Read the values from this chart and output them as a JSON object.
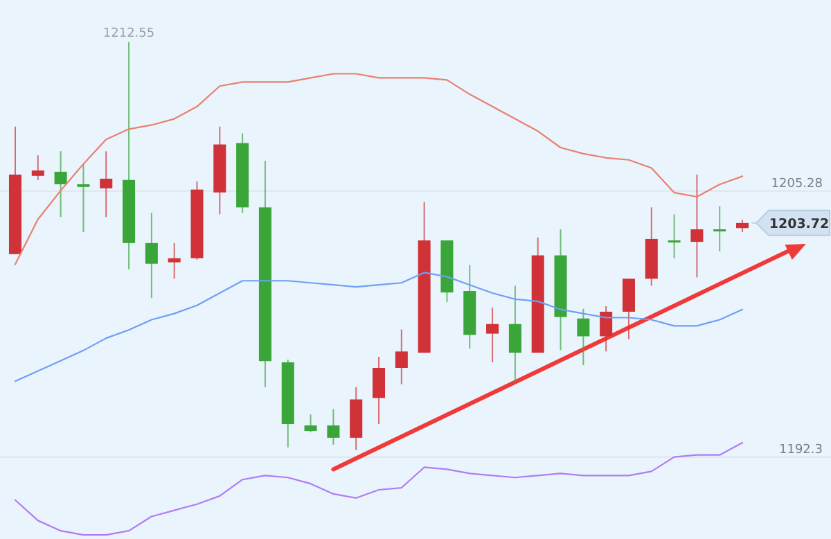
{
  "chart_data": {
    "type": "candlestick",
    "categories": [
      null,
      null,
      null,
      null,
      null,
      null,
      null,
      null,
      null,
      null,
      null,
      null,
      null,
      null,
      null,
      null,
      null,
      null,
      null,
      null,
      null,
      null,
      null,
      null,
      null,
      null,
      null,
      null,
      null,
      null,
      null,
      null,
      null
    ],
    "ohlc": [
      [
        1202.2,
        1208.42,
        1202.2,
        1206.08
      ],
      [
        1206.02,
        1207.02,
        1205.82,
        1206.28
      ],
      [
        1206.22,
        1207.22,
        1204.01,
        1205.61
      ],
      [
        1205.61,
        1206.62,
        1203.27,
        1205.48
      ],
      [
        1205.41,
        1207.22,
        1204.01,
        1205.88
      ],
      [
        1205.82,
        1212.55,
        1201.47,
        1202.74
      ],
      [
        1202.74,
        1204.21,
        1200.06,
        1201.73
      ],
      [
        1201.8,
        1202.74,
        1201.0,
        1202.0
      ],
      [
        1202.0,
        1205.75,
        1201.93,
        1205.35
      ],
      [
        1205.21,
        1208.42,
        1204.14,
        1207.55
      ],
      [
        1207.62,
        1208.09,
        1204.21,
        1204.48
      ],
      [
        1204.48,
        1206.75,
        1195.71,
        1196.98
      ],
      [
        1196.92,
        1197.05,
        1192.77,
        1193.91
      ],
      [
        1193.84,
        1194.38,
        1193.51,
        1193.57
      ],
      [
        1193.84,
        1194.64,
        1192.9,
        1193.24
      ],
      [
        1193.24,
        1195.71,
        1192.64,
        1195.11
      ],
      [
        1195.18,
        1197.19,
        1193.91,
        1196.65
      ],
      [
        1196.65,
        1198.52,
        1195.85,
        1197.45
      ],
      [
        1197.39,
        1204.74,
        1197.39,
        1202.87
      ],
      [
        1202.87,
        1202.87,
        1199.86,
        1200.33
      ],
      [
        1200.4,
        1201.67,
        1197.59,
        1198.26
      ],
      [
        1198.32,
        1199.59,
        1196.92,
        1198.79
      ],
      [
        1198.79,
        1200.66,
        1195.91,
        1197.39
      ],
      [
        1197.39,
        1203.01,
        1197.39,
        1202.14
      ],
      [
        1202.14,
        1203.41,
        1197.52,
        1199.13
      ],
      [
        1199.06,
        1199.53,
        1196.78,
        1198.19
      ],
      [
        1198.19,
        1199.66,
        1197.45,
        1199.39
      ],
      [
        1199.39,
        1201.0,
        1198.05,
        1201.0
      ],
      [
        1201.0,
        1204.48,
        1200.66,
        1202.94
      ],
      [
        1202.87,
        1204.14,
        1202.0,
        1202.8
      ],
      [
        1202.8,
        1206.08,
        1201.07,
        1203.41
      ],
      [
        1203.41,
        1204.54,
        1202.34,
        1203.34
      ],
      [
        1203.47,
        1203.88,
        1203.27,
        1203.72
      ]
    ],
    "colors": [
      "#d03238",
      "#d03238",
      "#3aa63a",
      "#3aa63a",
      "#d03238",
      "#3aa63a",
      "#3aa63a",
      "#d03238",
      "#d03238",
      "#d03238",
      "#3aa63a",
      "#3aa63a",
      "#3aa63a",
      "#3aa63a",
      "#3aa63a",
      "#d03238",
      "#d03238",
      "#d03238",
      "#d03238",
      "#3aa63a",
      "#3aa63a",
      "#d03238",
      "#3aa63a",
      "#d03238",
      "#3aa63a",
      "#3aa63a",
      "#d03238",
      "#d03238",
      "#d03238",
      "#3aa63a",
      "#d03238",
      "#3aa63a",
      "#d03238"
    ],
    "series": [
      {
        "type": "line",
        "color": "#e8806e",
        "values": [
          1201.7,
          1203.9,
          1205.3,
          1206.6,
          1207.8,
          1208.3,
          1208.5,
          1208.8,
          1209.4,
          1210.4,
          1210.6,
          1210.6,
          1210.6,
          1210.8,
          1211.0,
          1211.0,
          1210.8,
          1210.8,
          1210.8,
          1210.7,
          1210.0,
          1209.4,
          1208.8,
          1208.2,
          1207.4,
          1207.1,
          1206.9,
          1206.8,
          1206.4,
          1205.2,
          1205.0,
          1205.6,
          1206.0
        ]
      },
      {
        "type": "line",
        "color": "#6f9ff5",
        "values": [
          1196.0,
          1196.5,
          1197.0,
          1197.5,
          1198.1,
          1198.5,
          1199.0,
          1199.3,
          1199.7,
          1200.3,
          1200.9,
          1200.9,
          1200.9,
          1200.8,
          1200.7,
          1200.6,
          1200.7,
          1200.8,
          1201.3,
          1201.1,
          1200.7,
          1200.3,
          1200.0,
          1199.9,
          1199.5,
          1199.3,
          1199.1,
          1199.1,
          1199.0,
          1198.7,
          1198.7,
          1199.0,
          1199.5
        ]
      },
      {
        "type": "line",
        "color": "#b07cf5",
        "values": [
          1190.2,
          1189.2,
          1188.7,
          1188.5,
          1188.5,
          1188.7,
          1189.4,
          1189.7,
          1190.0,
          1190.4,
          1191.2,
          1191.4,
          1191.3,
          1191.0,
          1190.5,
          1190.3,
          1190.7,
          1190.8,
          1191.8,
          1191.7,
          1191.5,
          1191.4,
          1191.3,
          1191.4,
          1191.5,
          1191.4,
          1191.4,
          1191.4,
          1191.6,
          1192.3,
          1192.4,
          1192.4,
          1193.0
        ]
      }
    ],
    "ylim": [
      1188.3,
      1214.6
    ],
    "yticks": [
      1205.28,
      1192.3
    ],
    "tick_labels": "y",
    "grid": "y",
    "ref_lines": [
      {
        "axis": "y",
        "value": 1203.72,
        "label": "1203.72"
      }
    ],
    "annotations": [
      {
        "text": "1212.55",
        "y": 1212.55
      }
    ]
  }
}
